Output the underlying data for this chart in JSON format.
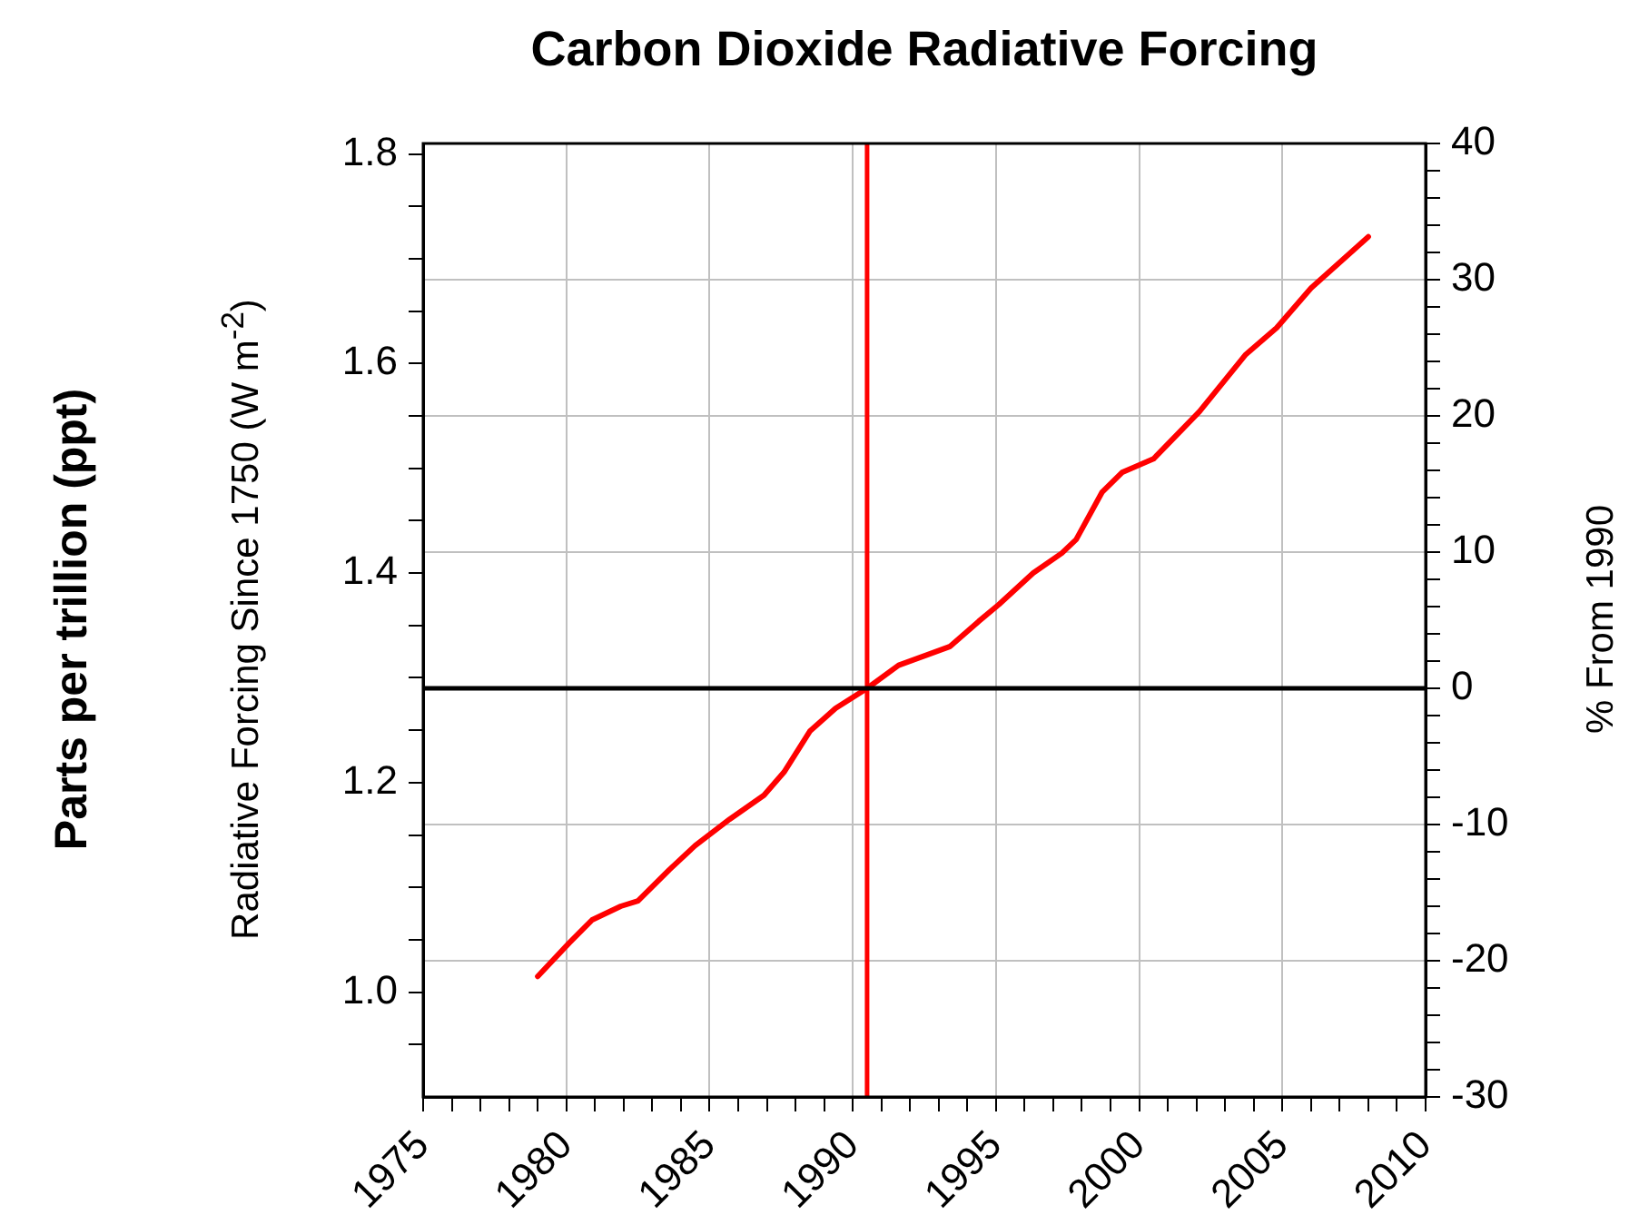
{
  "chart_data": {
    "type": "line",
    "title": "Carbon Dioxide Radiative Forcing",
    "ylabel": "Radiative Forcing Since 1750 (W m$^{-2}$)",
    "y2label": "% From 1990",
    "annotations": [
      "Parts per trillion (ppt)"
    ],
    "x": [
      1979.0,
      1980.1,
      1980.9,
      1981.9,
      1982.5,
      1983.6,
      1984.5,
      1985.7,
      1986.9,
      1987.6,
      1988.5,
      1989.4,
      1990.5,
      1991.6,
      1993.4,
      1994.4,
      1995.1,
      1996.3,
      1997.3,
      1997.8,
      1998.7,
      1999.4,
      2000.5,
      2002.1,
      2003.7,
      2004.8,
      2006.0,
      2008.0
    ],
    "series": [
      {
        "color": "#ff0000",
        "values": [
          1.015,
          1.047,
          1.069,
          1.082,
          1.087,
          1.117,
          1.14,
          1.165,
          1.188,
          1.21,
          1.249,
          1.271,
          1.29,
          1.312,
          1.33,
          1.354,
          1.37,
          1.4,
          1.419,
          1.432,
          1.477,
          1.496,
          1.509,
          1.554,
          1.608,
          1.634,
          1.672,
          1.721
        ]
      }
    ],
    "xlim": [
      1975,
      2010
    ],
    "xticks": [
      1975,
      {
        "value": 1976,
        "label": null
      },
      {
        "value": 1977,
        "label": null
      },
      {
        "value": 1978,
        "label": null
      },
      {
        "value": 1979,
        "label": null
      },
      1980,
      {
        "value": 1981,
        "label": null
      },
      {
        "value": 1982,
        "label": null
      },
      {
        "value": 1983,
        "label": null
      },
      {
        "value": 1984,
        "label": null
      },
      1985,
      {
        "value": 1986,
        "label": null
      },
      {
        "value": 1987,
        "label": null
      },
      {
        "value": 1988,
        "label": null
      },
      {
        "value": 1989,
        "label": null
      },
      1990,
      {
        "value": 1991,
        "label": null
      },
      {
        "value": 1992,
        "label": null
      },
      {
        "value": 1993,
        "label": null
      },
      {
        "value": 1994,
        "label": null
      },
      1995,
      {
        "value": 1996,
        "label": null
      },
      {
        "value": 1997,
        "label": null
      },
      {
        "value": 1998,
        "label": null
      },
      {
        "value": 1999,
        "label": null
      },
      2000,
      {
        "value": 2001,
        "label": null
      },
      {
        "value": 2002,
        "label": null
      },
      {
        "value": 2003,
        "label": null
      },
      {
        "value": 2004,
        "label": null
      },
      2005,
      {
        "value": 2006,
        "label": null
      },
      {
        "value": 2007,
        "label": null
      },
      {
        "value": 2008,
        "label": null
      },
      {
        "value": 2009,
        "label": null
      },
      2010
    ],
    "ylim": [
      0.9,
      1.81
    ],
    "yticks": [
      {
        "value": 0.95,
        "label": null
      },
      {
        "value": 1,
        "label": "1.0"
      },
      {
        "value": 1.05,
        "label": null
      },
      {
        "value": 1.1,
        "label": null
      },
      {
        "value": 1.15,
        "label": null
      },
      1.2,
      {
        "value": 1.25,
        "label": null
      },
      {
        "value": 1.3,
        "label": null
      },
      {
        "value": 1.35,
        "label": null
      },
      1.4,
      {
        "value": 1.45,
        "label": null
      },
      {
        "value": 1.5,
        "label": null
      },
      {
        "value": 1.55,
        "label": null
      },
      1.6,
      {
        "value": 1.65,
        "label": null
      },
      {
        "value": 1.7,
        "label": null
      },
      {
        "value": 1.75,
        "label": null
      },
      1.8
    ],
    "y2lim": [
      -30,
      40
    ],
    "y2ticks": [
      -30,
      {
        "value": -28,
        "label": null
      },
      {
        "value": -26,
        "label": null
      },
      {
        "value": -24,
        "label": null
      },
      {
        "value": -22,
        "label": null
      },
      -20,
      {
        "value": -18,
        "label": null
      },
      {
        "value": -16,
        "label": null
      },
      {
        "value": -14,
        "label": null
      },
      {
        "value": -12,
        "label": null
      },
      -10,
      {
        "value": -8,
        "label": null
      },
      {
        "value": -6,
        "label": null
      },
      {
        "value": -4,
        "label": null
      },
      {
        "value": -2,
        "label": null
      },
      0,
      {
        "value": 2,
        "label": null
      },
      {
        "value": 4,
        "label": null
      },
      {
        "value": 6,
        "label": null
      },
      {
        "value": 8,
        "label": null
      },
      10,
      {
        "value": 12,
        "label": null
      },
      {
        "value": 14,
        "label": null
      },
      {
        "value": 16,
        "label": null
      },
      {
        "value": 18,
        "label": null
      },
      20,
      {
        "value": 22,
        "label": null
      },
      {
        "value": 24,
        "label": null
      },
      {
        "value": 26,
        "label": null
      },
      {
        "value": 28,
        "label": null
      },
      30,
      {
        "value": 32,
        "label": null
      },
      {
        "value": 34,
        "label": null
      },
      {
        "value": 36,
        "label": null
      },
      {
        "value": 38,
        "label": null
      },
      40
    ],
    "ref_lines": [
      {
        "axis": "x",
        "value": 1990.5,
        "color": "#ff0000"
      },
      {
        "axis": "y2",
        "value": 0,
        "color": "#000000"
      }
    ],
    "grid": true,
    "legend": false,
    "marker": "none",
    "line_style": "solid"
  }
}
